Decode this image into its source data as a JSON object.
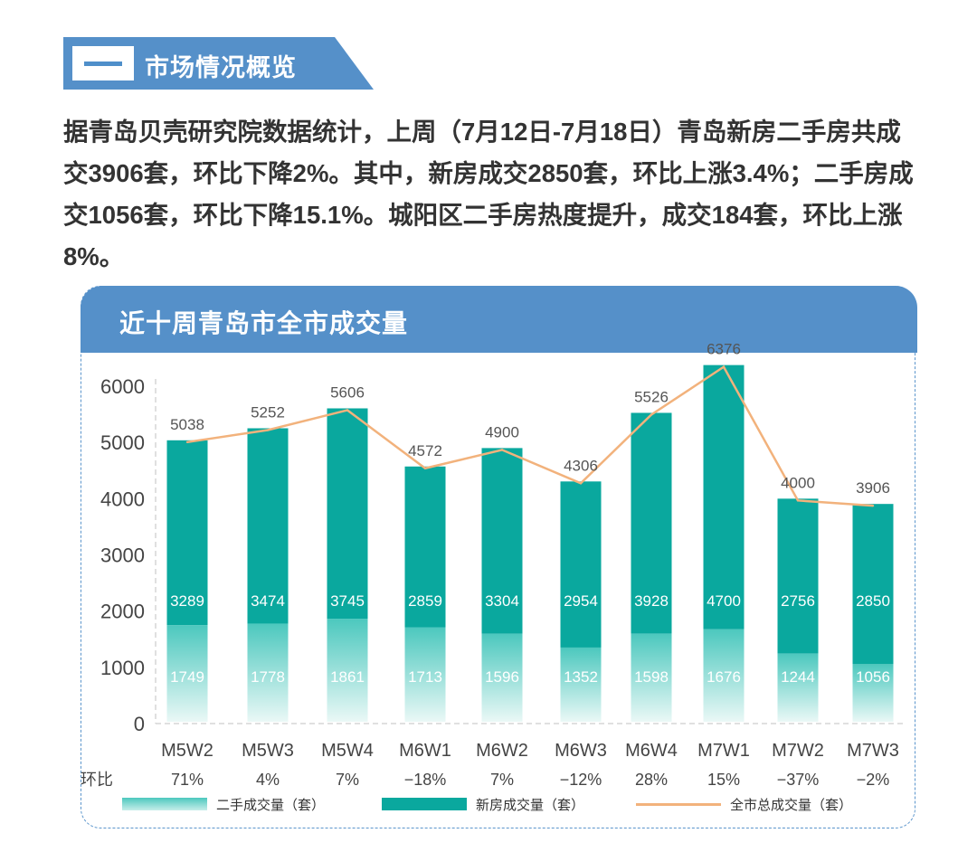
{
  "section": {
    "number": "—",
    "title": "市场情况概览"
  },
  "intro_text": "据青岛贝壳研究院数据统计，上周（7月12日-7月18日）青岛新房二手房共成交3906套，环比下降2%。其中，新房成交2850套，环比上涨3.4%；二手房成交1056套，环比下降15.1%。城阳区二手房热度提升，成交184套，环比上涨8%。",
  "colors": {
    "header_blue": "#5590c9",
    "new_house": "#0aa89e",
    "second_hand_top": "#4cc8be",
    "second_hand_bottom": "#e6f7f5",
    "total_line": "#f2b27c"
  },
  "chart_data": {
    "type": "bar",
    "title": "近十周青岛市全市成交量",
    "categories": [
      "M5W2",
      "M5W3",
      "M5W4",
      "M6W1",
      "M6W2",
      "M6W3",
      "M6W4",
      "M7W1",
      "M7W2",
      "M7W3"
    ],
    "series": [
      {
        "name": "二手成交量（套）",
        "kind": "stacked-bar",
        "values": [
          1749,
          1778,
          1861,
          1713,
          1596,
          1352,
          1598,
          1676,
          1244,
          1056
        ]
      },
      {
        "name": "新房成交量（套）",
        "kind": "stacked-bar",
        "values": [
          3289,
          3474,
          3745,
          2859,
          3304,
          2954,
          3928,
          4700,
          2756,
          2850
        ]
      },
      {
        "name": "全市总成交量（套）",
        "kind": "line",
        "values": [
          5038,
          5252,
          5606,
          4572,
          4900,
          4306,
          5526,
          6376,
          4000,
          3906
        ]
      }
    ],
    "mom_label": "环比",
    "mom": [
      "71%",
      "4%",
      "7%",
      "−18%",
      "7%",
      "−12%",
      "28%",
      "15%",
      "−37%",
      "−2%"
    ],
    "yticks": [
      0,
      1000,
      2000,
      3000,
      4000,
      5000,
      6000
    ],
    "ylim": [
      0,
      6000
    ],
    "xlabel": "",
    "ylabel": "",
    "legend_position": "bottom"
  }
}
